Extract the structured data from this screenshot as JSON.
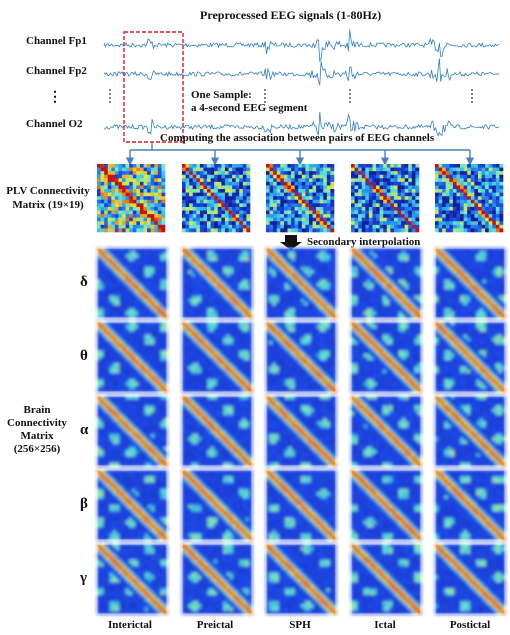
{
  "header": {
    "title": "Preprocessed EEG signals (1-80Hz)"
  },
  "channels": [
    {
      "name": "Channel Fp1"
    },
    {
      "name": "Channel Fp2"
    },
    {
      "name": "⋮"
    },
    {
      "name": "Channel O2"
    }
  ],
  "sample_note": {
    "line1": "One Sample:",
    "line2": "a 4-second EEG segment"
  },
  "association_label": "Computing the association between pairs of EEG channels",
  "plv": {
    "line1": "PLV Connectivity",
    "line2": "Matrix (19×19)"
  },
  "interpolation_label": "Secondary interpolation",
  "bands": [
    "δ",
    "θ",
    "α",
    "β",
    "γ"
  ],
  "brain_matrix": {
    "line1": "Brain",
    "line2": "Connectivity",
    "line3": "Matrix",
    "line4": "(256×256)"
  },
  "states": [
    "Interictal",
    "Preictal",
    "SPH",
    "Ictal",
    "Postictal"
  ],
  "colors": {
    "signal": "#2f7fc6",
    "highlight_box": "#d62020",
    "arrow": "#4a7fc0",
    "heat_low": "#1a3ad6",
    "heat_high": "#c41e1e"
  }
}
